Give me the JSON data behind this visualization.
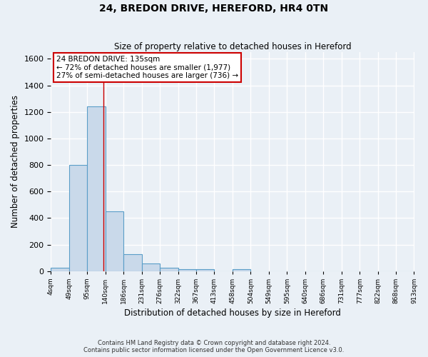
{
  "title1": "24, BREDON DRIVE, HEREFORD, HR4 0TN",
  "title2": "Size of property relative to detached houses in Hereford",
  "xlabel": "Distribution of detached houses by size in Hereford",
  "ylabel": "Number of detached properties",
  "bin_edges": [
    4,
    49,
    95,
    140,
    186,
    231,
    276,
    322,
    367,
    413,
    458,
    504,
    549,
    595,
    640,
    686,
    731,
    777,
    822,
    868,
    913
  ],
  "bar_heights": [
    25,
    800,
    1240,
    450,
    130,
    60,
    25,
    15,
    15,
    0,
    15,
    0,
    0,
    0,
    0,
    0,
    0,
    0,
    0,
    0
  ],
  "bar_color": "#c9d9ea",
  "bar_edge_color": "#5a9ec8",
  "ylim": [
    0,
    1650
  ],
  "yticks": [
    0,
    200,
    400,
    600,
    800,
    1000,
    1200,
    1400,
    1600
  ],
  "red_line_x": 135,
  "annotation_line1": "24 BREDON DRIVE: 135sqm",
  "annotation_line2": "← 72% of detached houses are smaller (1,977)",
  "annotation_line3": "27% of semi-detached houses are larger (736) →",
  "annotation_box_color": "#ffffff",
  "annotation_box_edge": "#cc0000",
  "bg_color": "#eaf0f6",
  "grid_color": "#ffffff",
  "footer1": "Contains HM Land Registry data © Crown copyright and database right 2024.",
  "footer2": "Contains public sector information licensed under the Open Government Licence v3.0."
}
